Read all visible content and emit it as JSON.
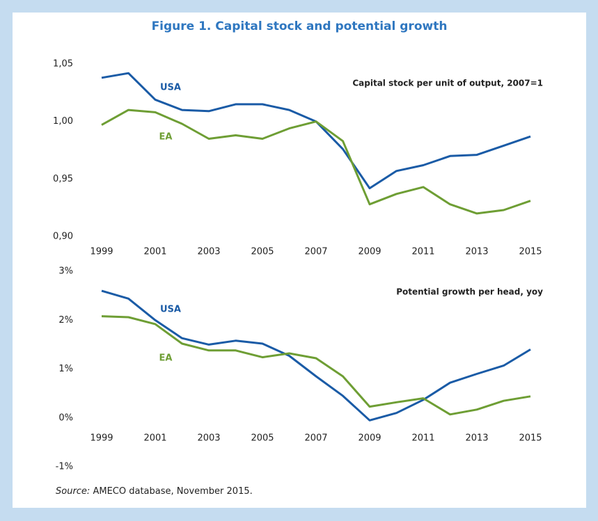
{
  "title": "Figure 1. Capital stock and potential growth",
  "source_label": "Source:",
  "source": "AMECO database, November 2015.",
  "chart_data": [
    {
      "type": "line",
      "title": "Capital stock per unit of output, 2007=1",
      "x": [
        1999,
        2000,
        2001,
        2002,
        2003,
        2004,
        2005,
        2006,
        2007,
        2008,
        2009,
        2010,
        2011,
        2012,
        2013,
        2014,
        2015
      ],
      "series": [
        {
          "name": "USA",
          "color": "#1a5ba6",
          "values": [
            1.038,
            1.042,
            1.019,
            1.01,
            1.009,
            1.015,
            1.015,
            1.01,
            1.0,
            0.976,
            0.942,
            0.957,
            0.962,
            0.97,
            0.971,
            0.979,
            0.987
          ]
        },
        {
          "name": "EA",
          "color": "#6e9e34",
          "values": [
            0.997,
            1.01,
            1.008,
            0.998,
            0.985,
            0.988,
            0.985,
            0.994,
            1.0,
            0.983,
            0.928,
            0.937,
            0.943,
            0.928,
            0.92,
            0.923,
            0.931
          ]
        }
      ],
      "xlim": [
        1999,
        2015
      ],
      "xticks": [
        1999,
        2001,
        2003,
        2005,
        2007,
        2009,
        2011,
        2013,
        2015
      ],
      "ylim": [
        0.9,
        1.05
      ],
      "yticks": [
        {
          "value": 0.9,
          "label": "0,90"
        },
        {
          "value": 0.95,
          "label": "0,95"
        },
        {
          "value": 1.0,
          "label": "1,00"
        },
        {
          "value": 1.05,
          "label": "1,05"
        }
      ],
      "grid": false
    },
    {
      "type": "line",
      "title": "Potential growth per head, yoy",
      "x": [
        1999,
        2000,
        2001,
        2002,
        2003,
        2004,
        2005,
        2006,
        2007,
        2008,
        2009,
        2010,
        2011,
        2012,
        2013,
        2014,
        2015
      ],
      "series": [
        {
          "name": "USA",
          "color": "#1a5ba6",
          "values": [
            2.6,
            2.44,
            2.0,
            1.63,
            1.5,
            1.58,
            1.52,
            1.27,
            0.85,
            0.45,
            -0.05,
            0.1,
            0.37,
            0.72,
            0.9,
            1.07,
            1.4
          ]
        },
        {
          "name": "EA",
          "color": "#6e9e34",
          "values": [
            2.08,
            2.06,
            1.92,
            1.52,
            1.38,
            1.38,
            1.24,
            1.32,
            1.22,
            0.85,
            0.23,
            0.32,
            0.4,
            0.07,
            0.17,
            0.35,
            0.44
          ]
        }
      ],
      "xlim": [
        1999,
        2015
      ],
      "xticks": [
        1999,
        2001,
        2003,
        2005,
        2007,
        2009,
        2011,
        2013,
        2015
      ],
      "ylim": [
        -1,
        3
      ],
      "yticks": [
        {
          "value": -1,
          "label": "-1%"
        },
        {
          "value": 0,
          "label": "0%"
        },
        {
          "value": 1,
          "label": "1%"
        },
        {
          "value": 2,
          "label": "2%"
        },
        {
          "value": 3,
          "label": "3%"
        }
      ],
      "grid": false
    }
  ]
}
